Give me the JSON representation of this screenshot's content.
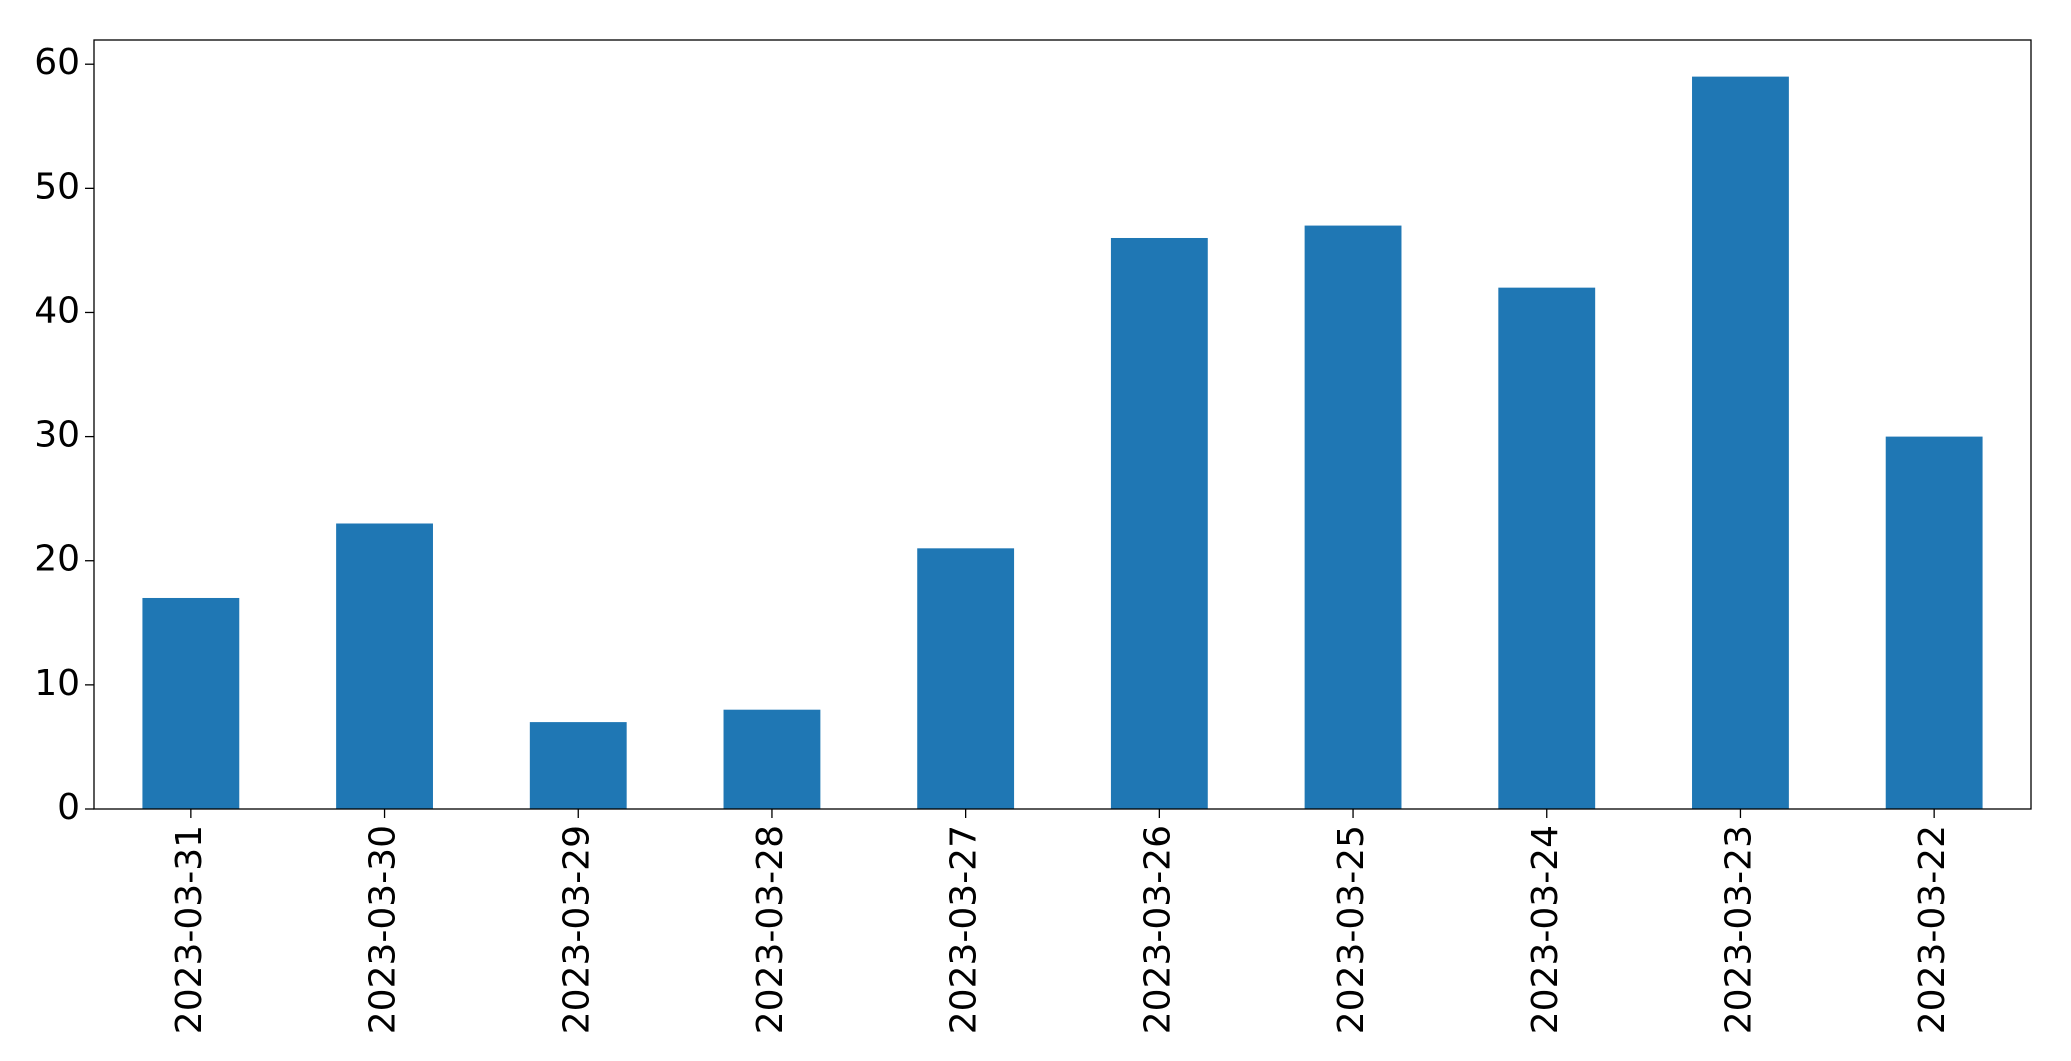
{
  "chart_data": {
    "type": "bar",
    "categories": [
      "2023-03-31",
      "2023-03-30",
      "2023-03-29",
      "2023-03-28",
      "2023-03-27",
      "2023-03-26",
      "2023-03-25",
      "2023-03-24",
      "2023-03-23",
      "2023-03-22"
    ],
    "values": [
      17,
      23,
      7,
      8,
      21,
      46,
      47,
      42,
      59,
      30
    ],
    "color": "#1f77b4",
    "ylim": [
      0,
      61.95
    ],
    "yticks": [
      0,
      10,
      20,
      30,
      40,
      50,
      60
    ],
    "grid": false
  }
}
